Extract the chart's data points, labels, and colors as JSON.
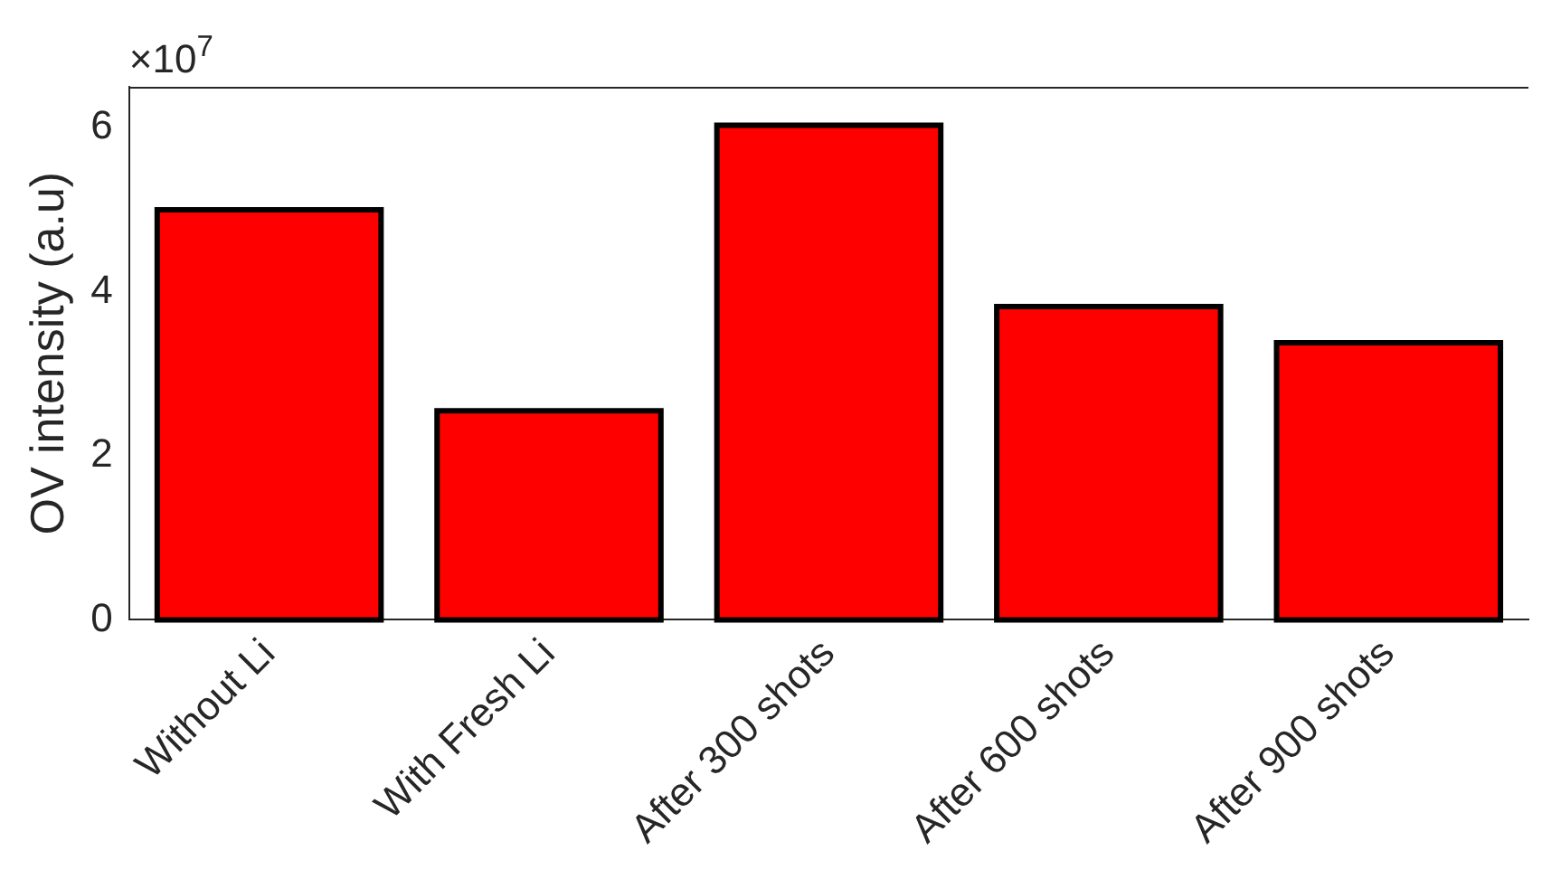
{
  "chart_data": {
    "type": "bar",
    "ylabel": "OV intensity (a.u)",
    "categories": [
      "Without Li",
      "With Fresh Li",
      "After 300 shots",
      "After 600 shots",
      "After 900 shots"
    ],
    "values": [
      5.0,
      2.55,
      6.03,
      3.82,
      3.38
    ],
    "color": "#ff0000",
    "ylim": [
      0,
      6.5
    ],
    "yticks": [
      0,
      2,
      4,
      6
    ],
    "grid": false,
    "annotations": [
      "×10$^{7}$"
    ]
  }
}
